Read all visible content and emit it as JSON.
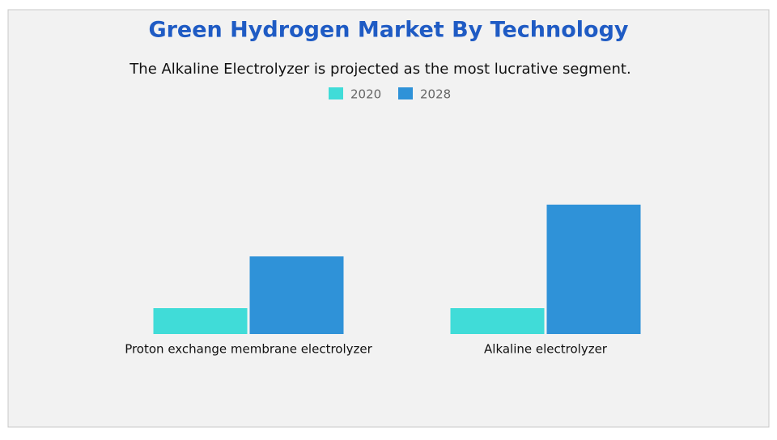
{
  "chart_data": {
    "type": "bar",
    "title": "Green Hydrogen Market By Technology",
    "subtitle": "The Alkaline Electrolyzer is projected as the most lucrative segment.",
    "categories": [
      "Proton exchange membrane electrolyzer",
      "Alkaline electrolyzer"
    ],
    "series": [
      {
        "name": "2020",
        "color": "#40dcd8",
        "values": [
          1,
          1
        ]
      },
      {
        "name": "2028",
        "color": "#2f92d8",
        "values": [
          3,
          5
        ]
      }
    ],
    "ylim": [
      0,
      6
    ]
  }
}
